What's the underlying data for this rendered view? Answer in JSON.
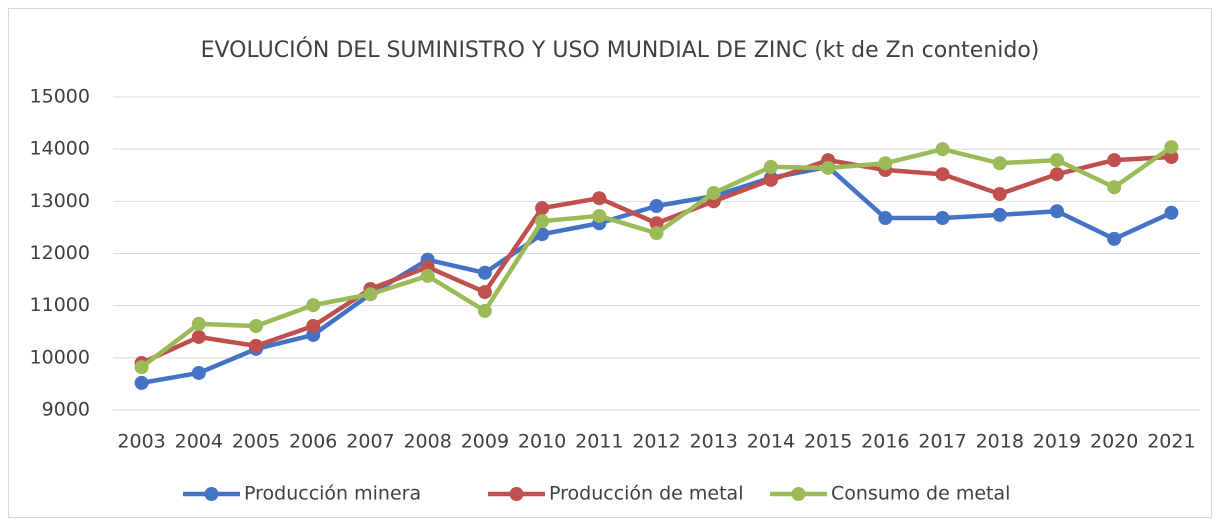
{
  "chart_data": {
    "type": "line",
    "title": "EVOLUCIÓN DEL SUMINISTRO Y USO MUNDIAL DE ZINC (kt de Zn contenido)",
    "categories": [
      "2003",
      "2004",
      "2005",
      "2006",
      "2007",
      "2008",
      "2009",
      "2010",
      "2011",
      "2012",
      "2013",
      "2014",
      "2015",
      "2016",
      "2017",
      "2018",
      "2019",
      "2020",
      "2021"
    ],
    "series": [
      {
        "name": "Producción minera",
        "color": "#4472c4",
        "values": [
          9520,
          9710,
          10170,
          10440,
          11220,
          11880,
          11630,
          12370,
          12580,
          12910,
          13100,
          13450,
          13660,
          12680,
          12680,
          12740,
          12810,
          12280,
          12780
        ]
      },
      {
        "name": "Producción de metal",
        "color": "#c0504d",
        "values": [
          9900,
          10400,
          10230,
          10610,
          11320,
          11740,
          11260,
          12870,
          13060,
          12580,
          13000,
          13410,
          13790,
          13600,
          13520,
          13140,
          13520,
          13790,
          13850
        ]
      },
      {
        "name": "Consumo de metal",
        "color": "#9bbb59",
        "values": [
          9820,
          10650,
          10610,
          11010,
          11220,
          11570,
          10900,
          12620,
          12720,
          12390,
          13160,
          13660,
          13640,
          13730,
          14000,
          13730,
          13790,
          13270,
          14040
        ]
      }
    ],
    "ylim": [
      9000,
      15000
    ],
    "yticks": [
      9000,
      10000,
      11000,
      12000,
      13000,
      14000,
      15000
    ],
    "grid": true,
    "legend": "bottom"
  }
}
